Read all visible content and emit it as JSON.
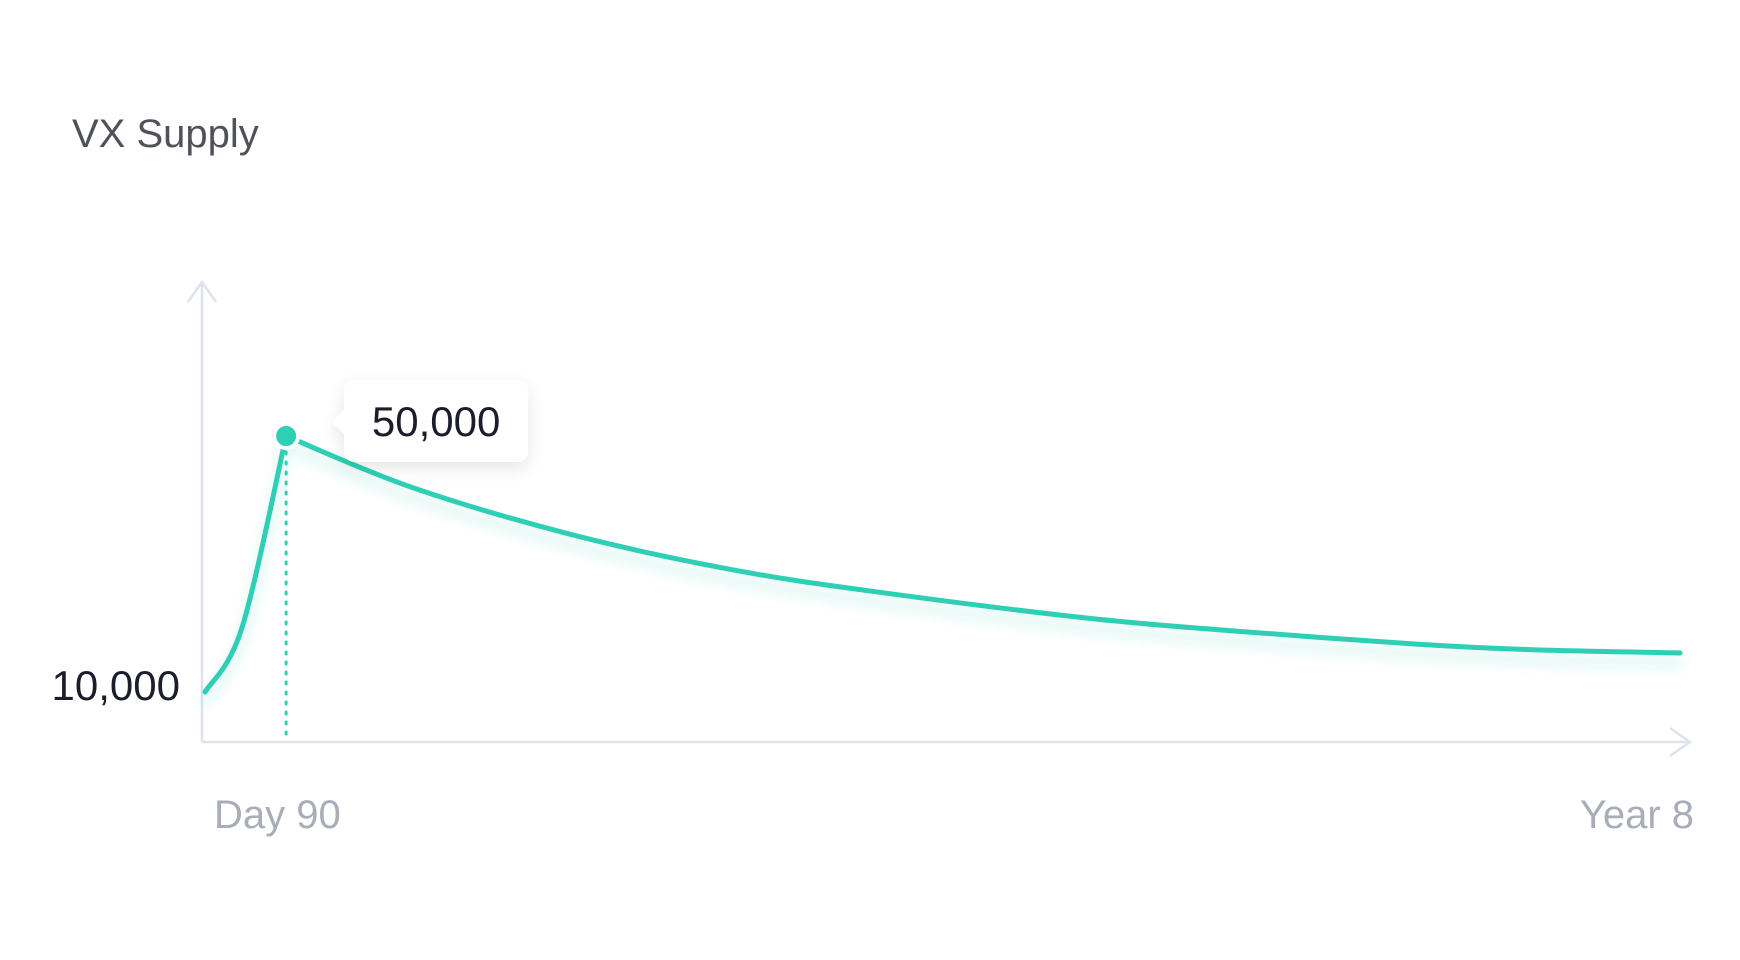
{
  "chart_data": {
    "type": "line",
    "title": "VX Supply",
    "x_start_label": "Day 90",
    "x_end_label": "Year 8",
    "y_label": "10,000",
    "peak_label": "50,000",
    "color": "#2ecfb4",
    "axis_color": "#dde3ec",
    "series": [
      {
        "values": [
          {
            "t": 0.0,
            "v": 10000
          },
          {
            "t": 0.025,
            "v": 20000
          },
          {
            "t": 0.055,
            "v": 50000
          },
          {
            "t": 0.14,
            "v": 42000
          },
          {
            "t": 0.25,
            "v": 34500
          },
          {
            "t": 0.36,
            "v": 29000
          },
          {
            "t": 0.46,
            "v": 25500
          },
          {
            "t": 0.6,
            "v": 21500
          },
          {
            "t": 0.7,
            "v": 19500
          },
          {
            "t": 0.82,
            "v": 17500
          },
          {
            "t": 0.9,
            "v": 16600
          },
          {
            "t": 1.0,
            "v": 16100
          }
        ]
      }
    ],
    "highlight_index": 2,
    "grid": false
  }
}
